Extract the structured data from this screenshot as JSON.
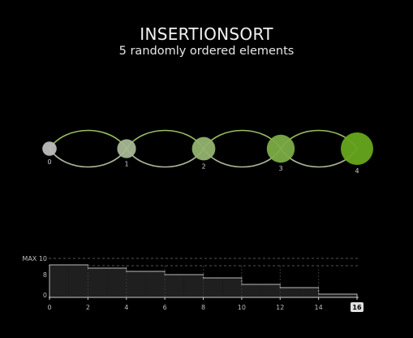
{
  "header": {
    "title": "INSERTIONSORT",
    "subtitle": "5 randomly ordered elements"
  },
  "colors": {
    "background": "#000000",
    "node_start": "#bdbdbd",
    "node_end": "#66a61e",
    "arc_bright": "#a8d36e",
    "arc_dim": "#c9d8b6",
    "bar_fill": "#1f1f1f",
    "bar_stroke": "#bbbbbb",
    "dashed": "#555555",
    "current_badge": "#e0e0e0"
  },
  "nodes": {
    "labels": [
      "0",
      "1",
      "2",
      "3",
      "4"
    ],
    "values": [
      1,
      2,
      3,
      4,
      5
    ]
  },
  "chart_data": {
    "type": "area",
    "x_ticks": [
      "0",
      "2",
      "4",
      "6",
      "8",
      "10",
      "12",
      "14",
      "16"
    ],
    "y_ticks": [
      "0",
      "8"
    ],
    "max_label": "MAX 10",
    "current_step": "16",
    "step_values": [
      10,
      10,
      9,
      9,
      8,
      8,
      7,
      7,
      6,
      6,
      4,
      4,
      3,
      3,
      1,
      1
    ],
    "xlim": [
      0,
      16
    ],
    "ylim": [
      0,
      10
    ]
  }
}
